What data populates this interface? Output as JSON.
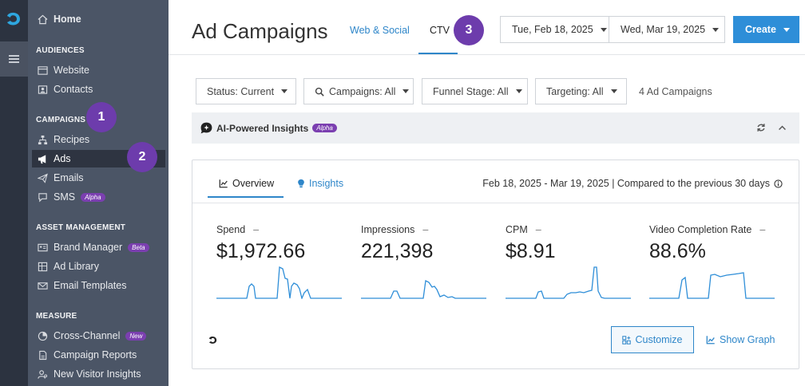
{
  "nav": {
    "home": "Home",
    "sections": {
      "audiences": "AUDIENCES",
      "campaigns": "CAMPAIGNS",
      "asset_management": "ASSET MANAGEMENT",
      "measure": "MEASURE"
    },
    "items": {
      "website": "Website",
      "contacts": "Contacts",
      "recipes": "Recipes",
      "ads": "Ads",
      "emails": "Emails",
      "sms": "SMS",
      "sms_tag": "Alpha",
      "brand_manager": "Brand Manager",
      "brand_manager_tag": "Beta",
      "ad_library": "Ad Library",
      "email_templates": "Email Templates",
      "cross_channel": "Cross-Channel",
      "cross_channel_tag": "New",
      "campaign_reports": "Campaign Reports",
      "new_visitor_insights": "New Visitor Insights"
    },
    "active": "ads"
  },
  "badges": [
    "1",
    "2",
    "3"
  ],
  "header": {
    "title": "Ad Campaigns",
    "tabs": [
      "Web & Social",
      "CTV"
    ],
    "active_tab": "CTV",
    "start_date": "Tue, Feb 18, 2025",
    "end_date": "Wed, Mar 19, 2025",
    "create_label": "Create"
  },
  "filters": {
    "status": "Status: Current",
    "campaigns": "Campaigns: All",
    "funnel": "Funnel Stage: All",
    "targeting": "Targeting: All",
    "count": "4 Ad Campaigns"
  },
  "insights_bar": {
    "label": "AI-Powered Insights",
    "tag": "Alpha"
  },
  "card": {
    "tabs": [
      "Overview",
      "Insights"
    ],
    "active_tab": "Overview",
    "period": "Feb 18, 2025 - Mar 19, 2025 | Compared to the previous 30 days",
    "metrics": [
      {
        "label": "Spend",
        "change": "–",
        "value": "$1,972.66"
      },
      {
        "label": "Impressions",
        "change": "–",
        "value": "221,398"
      },
      {
        "label": "CPM",
        "change": "–",
        "value": "$8.91"
      },
      {
        "label": "Video Completion Rate",
        "change": "–",
        "value": "88.6%"
      }
    ],
    "customize_label": "Customize",
    "show_graph_label": "Show Graph"
  },
  "colors": {
    "accent": "#2e86c9",
    "sidebar": "#4b5566",
    "rail": "#2c3340",
    "badge": "#6d3cac",
    "tag": "#7b3fb0"
  }
}
